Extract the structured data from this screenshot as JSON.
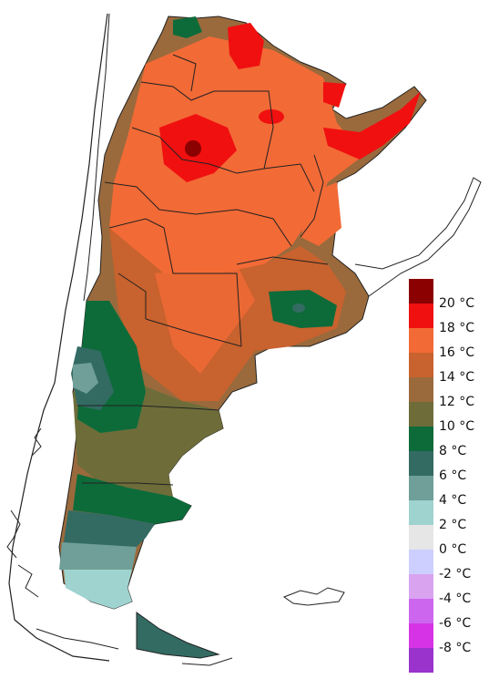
{
  "legend": {
    "items": [
      {
        "label": "20 °C",
        "color": "#8b0000"
      },
      {
        "label": "18 °C",
        "color": "#f01010"
      },
      {
        "label": "16 °C",
        "color": "#f26a36"
      },
      {
        "label": "14 °C",
        "color": "#c8622e"
      },
      {
        "label": "12 °C",
        "color": "#9a6a3c"
      },
      {
        "label": "10 °C",
        "color": "#6e6d3a"
      },
      {
        "label": "8 °C",
        "color": "#0d6b3a"
      },
      {
        "label": "6 °C",
        "color": "#336b63"
      },
      {
        "label": "4 °C",
        "color": "#6f9f98"
      },
      {
        "label": "2 °C",
        "color": "#9fd3cf"
      },
      {
        "label": "0 °C",
        "color": "#e6e6e6"
      },
      {
        "label": "-2 °C",
        "color": "#cccfff"
      },
      {
        "label": "-4 °C",
        "color": "#d9a3f0"
      },
      {
        "label": "-6 °C",
        "color": "#cc66ee"
      },
      {
        "label": "-8 °C",
        "color": "#d633e6"
      },
      {
        "label": "",
        "color": "#9933cc"
      }
    ]
  }
}
